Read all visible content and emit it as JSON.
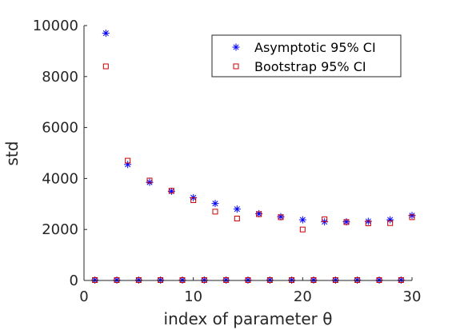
{
  "chart_data": {
    "type": "scatter",
    "xlabel": "index of parameter θ",
    "ylabel": "std",
    "xlim": [
      0,
      30
    ],
    "ylim": [
      0,
      10000
    ],
    "xticks": [
      0,
      10,
      20,
      30
    ],
    "yticks": [
      0,
      2000,
      4000,
      6000,
      8000,
      10000
    ],
    "xtick_labels": [
      "0",
      "10",
      "20",
      "30"
    ],
    "ytick_labels": [
      "0",
      "2000",
      "4000",
      "6000",
      "8000",
      "10000"
    ],
    "grid": false,
    "legend_position": "top-right",
    "series": [
      {
        "name": "Asymptotic 95% CI",
        "marker": "asterisk",
        "color": "#0000ff",
        "x": [
          1,
          2,
          3,
          4,
          5,
          6,
          7,
          8,
          9,
          10,
          11,
          12,
          13,
          14,
          15,
          16,
          17,
          18,
          19,
          20,
          21,
          22,
          23,
          24,
          25,
          26,
          27,
          28,
          29,
          30
        ],
        "y": [
          15,
          9700,
          15,
          4550,
          15,
          3850,
          15,
          3500,
          15,
          3250,
          15,
          3020,
          15,
          2800,
          15,
          2620,
          15,
          2500,
          15,
          2380,
          15,
          2300,
          15,
          2300,
          15,
          2320,
          15,
          2380,
          15,
          2550
        ]
      },
      {
        "name": "Bootstrap 95% CI",
        "marker": "square",
        "color": "#cc0000",
        "x": [
          1,
          2,
          3,
          4,
          5,
          6,
          7,
          8,
          9,
          10,
          11,
          12,
          13,
          14,
          15,
          16,
          17,
          18,
          19,
          20,
          21,
          22,
          23,
          24,
          25,
          26,
          27,
          28,
          29,
          30
        ],
        "y": [
          15,
          8400,
          15,
          4700,
          15,
          3920,
          15,
          3520,
          15,
          3150,
          15,
          2700,
          15,
          2430,
          15,
          2600,
          15,
          2480,
          15,
          2000,
          15,
          2400,
          15,
          2290,
          15,
          2240,
          15,
          2250,
          15,
          2480
        ]
      }
    ]
  }
}
